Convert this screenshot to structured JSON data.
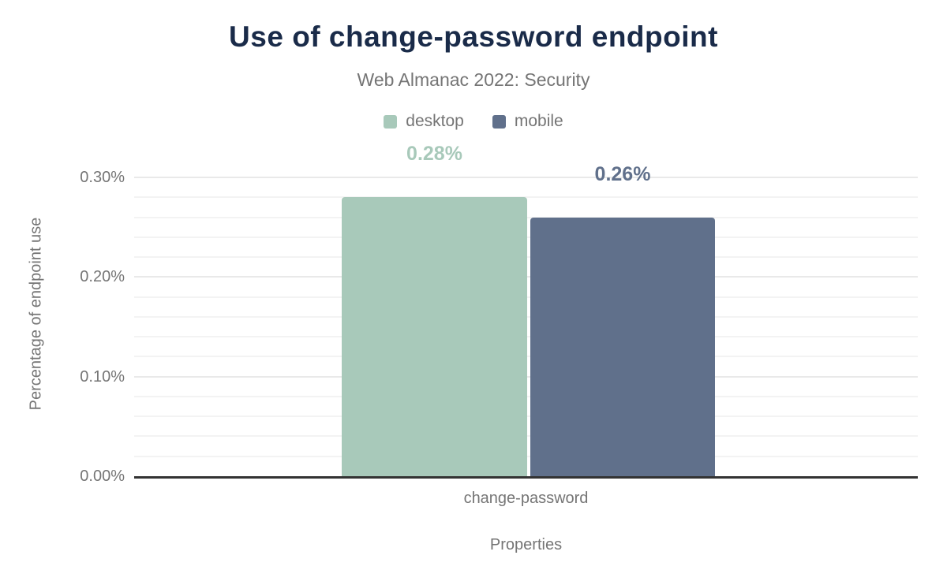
{
  "header": {
    "title": "Use of change-password endpoint",
    "subtitle": "Web Almanac 2022: Security"
  },
  "colors": {
    "title": "#1a2b49",
    "muted_text": "#757575",
    "desktop": "#a8c9ba",
    "mobile": "#60708b",
    "axis_line": "#333333",
    "grid_minor": "#f3f3f3",
    "grid_major": "#e9e9e9",
    "background": "#ffffff"
  },
  "chart_data": {
    "type": "bar",
    "title": "Use of change-password endpoint",
    "subtitle": "Web Almanac 2022: Security",
    "categories": [
      "change-password"
    ],
    "series": [
      {
        "name": "desktop",
        "values": [
          0.28
        ],
        "data_labels": [
          "0.28%"
        ],
        "color": "#a8c9ba"
      },
      {
        "name": "mobile",
        "values": [
          0.26
        ],
        "data_labels": [
          "0.26%"
        ],
        "color": "#60708b"
      }
    ],
    "xlabel": "Properties",
    "ylabel": "Percentage of endpoint use",
    "ylim": [
      0,
      0.33
    ],
    "yticks": [
      {
        "value": 0.0,
        "label": "0.00%"
      },
      {
        "value": 0.1,
        "label": "0.10%"
      },
      {
        "value": 0.2,
        "label": "0.20%"
      },
      {
        "value": 0.3,
        "label": "0.30%"
      }
    ],
    "grid": {
      "horizontal": true,
      "minor_step": 0.02,
      "major_step": 0.1,
      "max_line": 0.3
    },
    "legend_position": "top"
  }
}
